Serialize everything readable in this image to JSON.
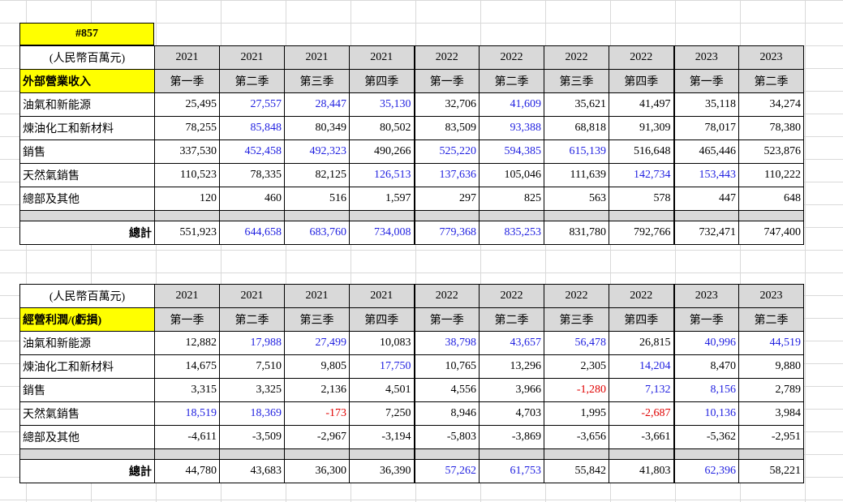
{
  "id_label": "#857",
  "tables": [
    {
      "unit": "(人民幣百萬元)",
      "section_title": "外部營業收入",
      "total_label": "總計",
      "years": [
        "2021",
        "2021",
        "2021",
        "2021",
        "2022",
        "2022",
        "2022",
        "2022",
        "2023",
        "2023"
      ],
      "quarters": [
        "第一季",
        "第二季",
        "第三季",
        "第四季",
        "第一季",
        "第二季",
        "第三季",
        "第四季",
        "第一季",
        "第二季"
      ],
      "rows": [
        {
          "label": "油氣和新能源",
          "values": [
            "25,495",
            "27,557",
            "28,447",
            "35,130",
            "32,706",
            "41,609",
            "35,621",
            "41,497",
            "35,118",
            "34,274"
          ],
          "colors": [
            "k",
            "b",
            "b",
            "b",
            "k",
            "b",
            "k",
            "k",
            "k",
            "k"
          ]
        },
        {
          "label": "煉油化工和新材料",
          "values": [
            "78,255",
            "85,848",
            "80,349",
            "80,502",
            "83,509",
            "93,388",
            "68,818",
            "91,309",
            "78,017",
            "78,380"
          ],
          "colors": [
            "k",
            "b",
            "k",
            "k",
            "k",
            "b",
            "k",
            "k",
            "k",
            "k"
          ]
        },
        {
          "label": "銷售",
          "values": [
            "337,530",
            "452,458",
            "492,323",
            "490,266",
            "525,220",
            "594,385",
            "615,139",
            "516,648",
            "465,446",
            "523,876"
          ],
          "colors": [
            "k",
            "b",
            "b",
            "k",
            "b",
            "b",
            "b",
            "k",
            "k",
            "k"
          ]
        },
        {
          "label": "天然氣銷售",
          "values": [
            "110,523",
            "78,335",
            "82,125",
            "126,513",
            "137,636",
            "105,046",
            "111,639",
            "142,734",
            "153,443",
            "110,222"
          ],
          "colors": [
            "k",
            "k",
            "k",
            "b",
            "b",
            "k",
            "k",
            "b",
            "b",
            "k"
          ]
        },
        {
          "label": "總部及其他",
          "values": [
            "120",
            "460",
            "516",
            "1,597",
            "297",
            "825",
            "563",
            "578",
            "447",
            "648"
          ],
          "colors": [
            "k",
            "k",
            "k",
            "k",
            "k",
            "k",
            "k",
            "k",
            "k",
            "k"
          ]
        }
      ],
      "totals": {
        "values": [
          "551,923",
          "644,658",
          "683,760",
          "734,008",
          "779,368",
          "835,253",
          "831,780",
          "792,766",
          "732,471",
          "747,400"
        ],
        "colors": [
          "k",
          "b",
          "b",
          "b",
          "b",
          "b",
          "k",
          "k",
          "k",
          "k"
        ]
      }
    },
    {
      "unit": "(人民幣百萬元)",
      "section_title": "經營利潤/(虧損)",
      "total_label": "總計",
      "years": [
        "2021",
        "2021",
        "2021",
        "2021",
        "2022",
        "2022",
        "2022",
        "2022",
        "2023",
        "2023"
      ],
      "quarters": [
        "第一季",
        "第二季",
        "第三季",
        "第四季",
        "第一季",
        "第二季",
        "第三季",
        "第四季",
        "第一季",
        "第二季"
      ],
      "rows": [
        {
          "label": "油氣和新能源",
          "values": [
            "12,882",
            "17,988",
            "27,499",
            "10,083",
            "38,798",
            "43,657",
            "56,478",
            "26,815",
            "40,996",
            "44,519"
          ],
          "colors": [
            "k",
            "b",
            "b",
            "k",
            "b",
            "b",
            "b",
            "k",
            "b",
            "b"
          ]
        },
        {
          "label": "煉油化工和新材料",
          "values": [
            "14,675",
            "7,510",
            "9,805",
            "17,750",
            "10,765",
            "13,296",
            "2,305",
            "14,204",
            "8,470",
            "9,880"
          ],
          "colors": [
            "k",
            "k",
            "k",
            "b",
            "k",
            "k",
            "k",
            "b",
            "k",
            "k"
          ]
        },
        {
          "label": "銷售",
          "values": [
            "3,315",
            "3,325",
            "2,136",
            "4,501",
            "4,556",
            "3,966",
            "-1,280",
            "7,132",
            "8,156",
            "2,789"
          ],
          "colors": [
            "k",
            "k",
            "k",
            "k",
            "k",
            "k",
            "r",
            "b",
            "b",
            "k"
          ]
        },
        {
          "label": "天然氣銷售",
          "values": [
            "18,519",
            "18,369",
            "-173",
            "7,250",
            "8,946",
            "4,703",
            "1,995",
            "-2,687",
            "10,136",
            "3,984"
          ],
          "colors": [
            "b",
            "b",
            "r",
            "k",
            "k",
            "k",
            "k",
            "r",
            "b",
            "k"
          ]
        },
        {
          "label": "總部及其他",
          "values": [
            "-4,611",
            "-3,509",
            "-2,967",
            "-3,194",
            "-5,803",
            "-3,869",
            "-3,656",
            "-3,661",
            "-5,362",
            "-2,951"
          ],
          "colors": [
            "k",
            "k",
            "k",
            "k",
            "k",
            "k",
            "k",
            "k",
            "k",
            "k"
          ]
        }
      ],
      "totals": {
        "values": [
          "44,780",
          "43,683",
          "36,300",
          "36,390",
          "57,262",
          "61,753",
          "55,842",
          "41,803",
          "62,396",
          "58,221"
        ],
        "colors": [
          "k",
          "k",
          "k",
          "k",
          "b",
          "b",
          "k",
          "k",
          "b",
          "k"
        ]
      }
    }
  ]
}
